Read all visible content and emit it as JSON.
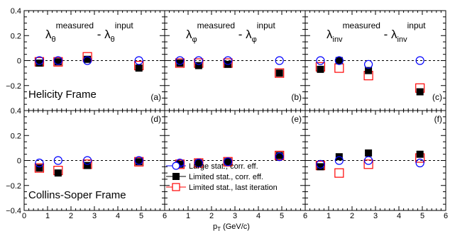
{
  "chart_data": {
    "type": "scatter",
    "layout": "2x3 grid of panels (rows: frames, columns: parameters), shared x axis",
    "xlabel": "p_T (GeV/c)",
    "xlabel_main": "p",
    "xlabel_sub": "T",
    "xlabel_unit": "(GeV/c)",
    "xlim": [
      0,
      6
    ],
    "ylim": [
      -0.4,
      0.4
    ],
    "x_ticks": [
      "0",
      "1",
      "2",
      "3",
      "4",
      "5",
      "6"
    ],
    "y_ticks_top": [
      "0.4",
      "0.2",
      "0",
      "−0.2"
    ],
    "y_ticks_bottom": [
      "0.4",
      "0.2",
      "0",
      "−0.2",
      "−0.4"
    ],
    "reference_line": 0,
    "columns": [
      {
        "base": "λ",
        "sub": "θ",
        "sup": "measured",
        "sep": "-",
        "sub2": "θ",
        "sup2": "input"
      },
      {
        "base": "λ",
        "sub": "φ",
        "sup": "measured",
        "sep": "-",
        "sub2": "φ",
        "sup2": "input"
      },
      {
        "base": "λ",
        "sub": "inv",
        "sup": "measured",
        "sep": "-",
        "sub2": "inv",
        "sup2": "input"
      }
    ],
    "row_labels": [
      "Helicity Frame",
      "Collins-Soper Frame"
    ],
    "legend": [
      {
        "label": "Large stat., corr. eff.",
        "marker": "open-circle",
        "color": "#0000ff"
      },
      {
        "label": "Limited stat., corr. eff.",
        "marker": "filled-square",
        "color": "#000000"
      },
      {
        "label": "Limited stat., last iteration",
        "marker": "open-square",
        "color": "#ff0000"
      }
    ],
    "legend_placement": "lower-left of panel (e)",
    "x": [
      0.65,
      1.45,
      2.7,
      4.9
    ],
    "panels": [
      {
        "label": "(a)",
        "row": 0,
        "col": 0,
        "series": [
          [
            0.0,
            0.0,
            0.0,
            0.0
          ],
          [
            -0.02,
            -0.01,
            0.01,
            -0.06
          ],
          [
            -0.01,
            -0.01,
            0.03,
            -0.04
          ]
        ]
      },
      {
        "label": "(b)",
        "row": 0,
        "col": 1,
        "series": [
          [
            0.0,
            0.0,
            0.0,
            0.0
          ],
          [
            -0.02,
            -0.04,
            -0.03,
            -0.1
          ],
          [
            -0.02,
            -0.02,
            -0.02,
            -0.1
          ]
        ]
      },
      {
        "label": "(c)",
        "row": 0,
        "col": 2,
        "series": [
          [
            0.0,
            0.0,
            -0.03,
            0.0
          ],
          [
            -0.07,
            0.0,
            -0.08,
            -0.25
          ],
          [
            -0.05,
            -0.06,
            -0.12,
            -0.22
          ]
        ]
      },
      {
        "label": "(d)",
        "row": 1,
        "col": 0,
        "series": [
          [
            -0.02,
            0.0,
            0.0,
            0.0
          ],
          [
            -0.06,
            -0.1,
            -0.04,
            -0.01
          ],
          [
            -0.06,
            -0.08,
            -0.03,
            -0.01
          ]
        ]
      },
      {
        "label": "(e)",
        "row": 1,
        "col": 1,
        "series": [
          [
            -0.02,
            -0.02,
            -0.01,
            0.03
          ],
          [
            -0.03,
            -0.02,
            -0.01,
            0.04
          ],
          [
            -0.03,
            -0.02,
            -0.01,
            0.04
          ]
        ]
      },
      {
        "label": "(f)",
        "row": 1,
        "col": 2,
        "series": [
          [
            -0.03,
            0.0,
            0.0,
            -0.02
          ],
          [
            -0.05,
            0.03,
            0.06,
            0.05
          ],
          [
            -0.04,
            -0.1,
            -0.03,
            0.02
          ]
        ]
      }
    ]
  }
}
